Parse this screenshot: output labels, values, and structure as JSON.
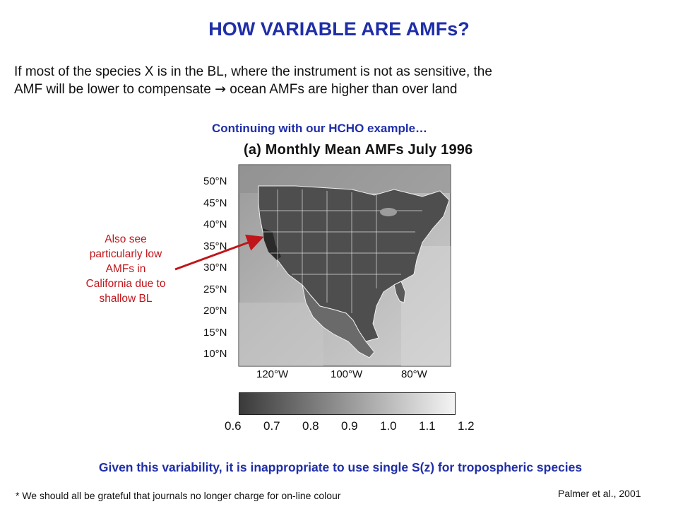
{
  "slide": {
    "title": "HOW VARIABLE ARE AMFs?",
    "intro_line1": "If most of the species X is in the BL, where the instrument is not as sensitive, the",
    "intro_line2_pre": "AMF will be lower to compensate",
    "intro_arrow": "→",
    "intro_line2_post": "ocean AMFs are higher than over land",
    "subheading": "Continuing with our HCHO example…",
    "conclusion": "Given this variability, it is inappropriate to use single S(z) for tropospheric species",
    "footnote": "* We should all be grateful that journals no longer charge for on-line colour",
    "citation": "Palmer et al., 2001"
  },
  "figure": {
    "title": "(a) Monthly Mean AMFs July 1996",
    "lat_labels": [
      "50°N",
      "45°N",
      "40°N",
      "35°N",
      "30°N",
      "25°N",
      "20°N",
      "15°N",
      "10°N"
    ],
    "lon_labels": [
      "120°W",
      "100°W",
      "80°W"
    ],
    "colorbar_ticks": [
      "0.6",
      "0.7",
      "0.8",
      "0.9",
      "1.0",
      "1.1",
      "1.2"
    ],
    "colorbar_range": [
      0.6,
      1.2
    ],
    "colorbar_from": "#3a3a3a",
    "colorbar_to": "#f4f4f4"
  },
  "annotation": {
    "lines": [
      "Also see",
      "particularly low",
      "AMFs in",
      "California due to",
      "shallow BL"
    ],
    "color": "#c0151a"
  }
}
